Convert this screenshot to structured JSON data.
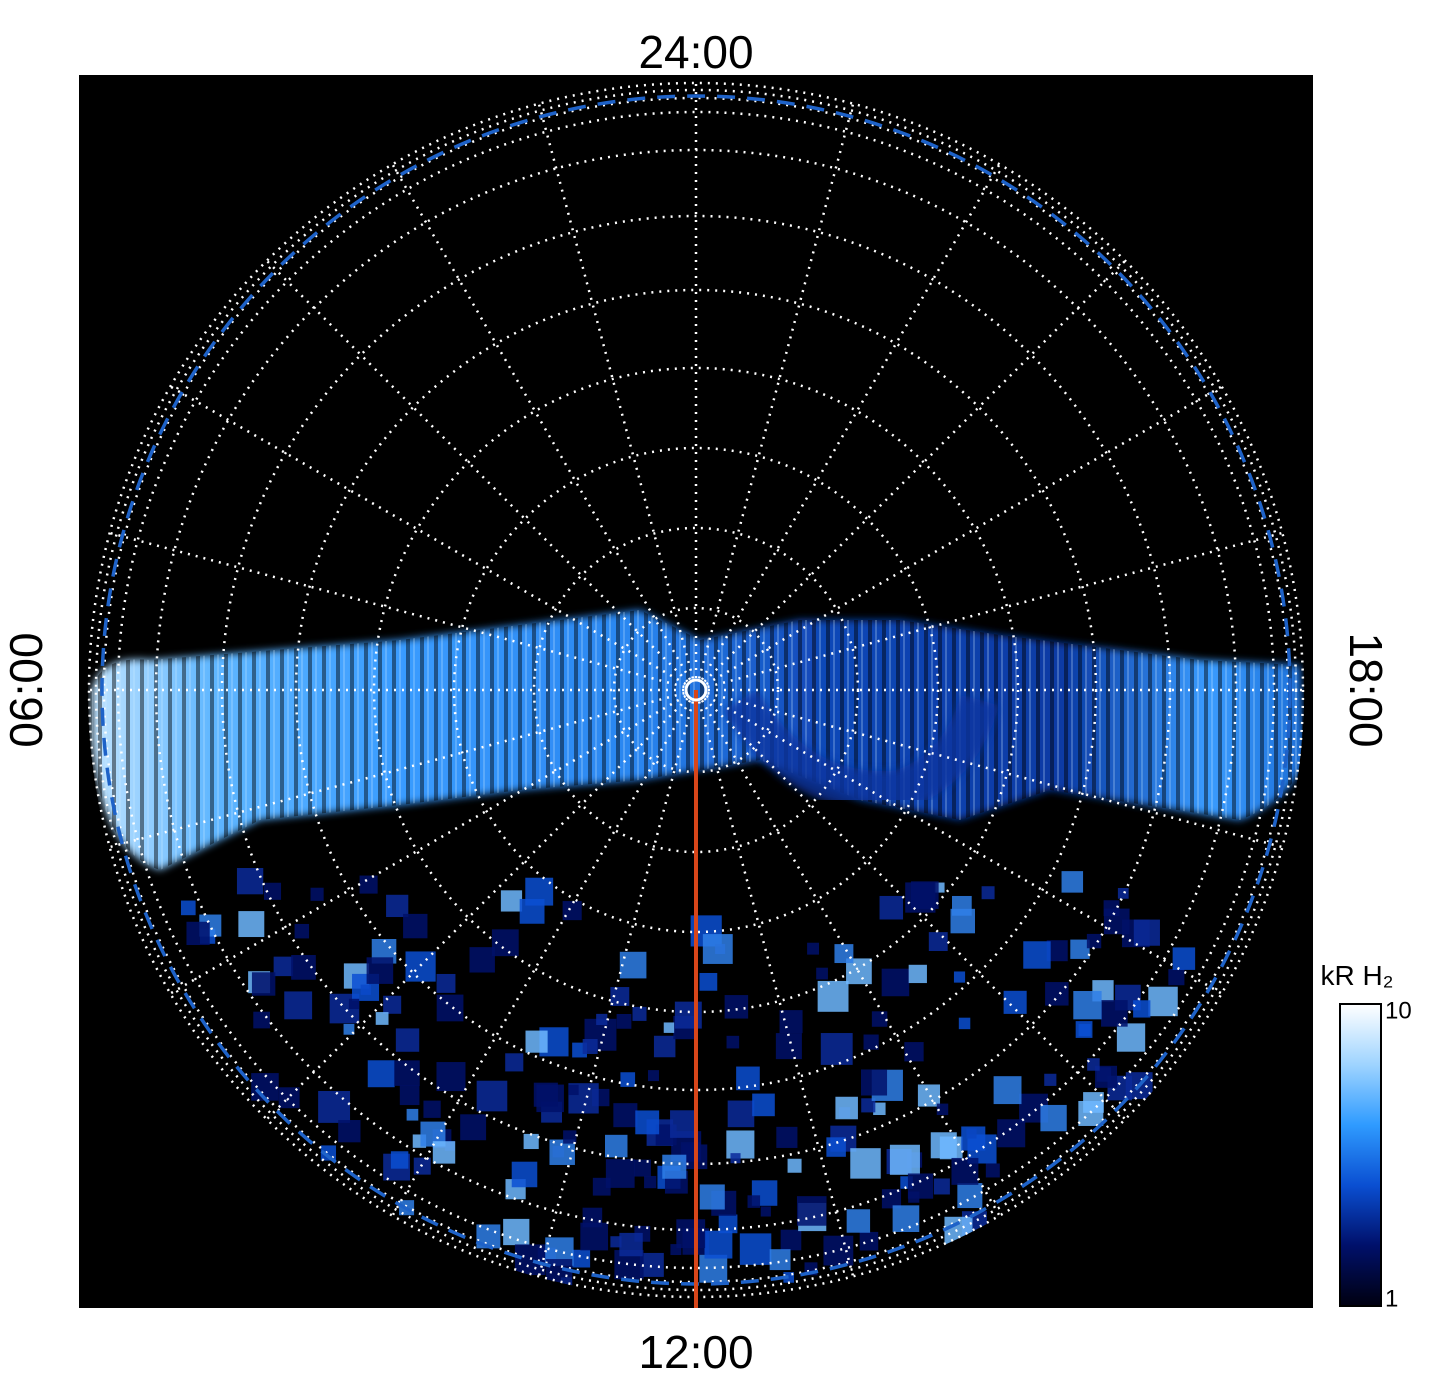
{
  "chart_data": {
    "type": "polar-image",
    "angular_ticks": [
      {
        "value": 24,
        "label": "24:00"
      },
      {
        "value": 6,
        "label": "06:00"
      },
      {
        "value": 12,
        "label": "12:00"
      },
      {
        "value": 18,
        "label": "18:00"
      }
    ],
    "colorbar": {
      "label": "kR H₂",
      "lim": [
        1,
        10
      ],
      "ticks": [
        1,
        10
      ],
      "log_scale": true,
      "colors": [
        "#000010",
        "#00106a",
        "#0a4fd2",
        "#2f9bff",
        "#9fd4ff",
        "#ffffff"
      ]
    },
    "grid": true,
    "boundary_color": "#1e62c8",
    "meridian_color": "#d8461a"
  }
}
